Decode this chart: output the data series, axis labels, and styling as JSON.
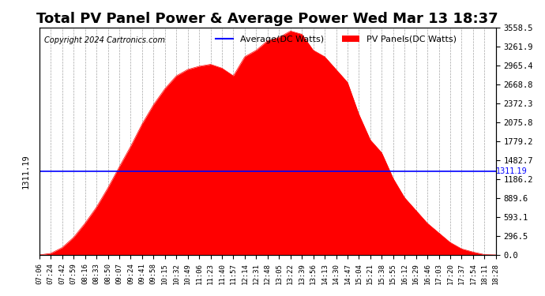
{
  "title": "Total PV Panel Power & Average Power Wed Mar 13 18:37",
  "copyright": "Copyright 2024 Cartronics.com",
  "legend_avg": "Average(DC Watts)",
  "legend_pv": "PV Panels(DC Watts)",
  "avg_value": 1311.19,
  "y_max": 3558.5,
  "y_min": 0.0,
  "yticks": [
    0.0,
    296.5,
    593.1,
    889.6,
    1186.2,
    1482.7,
    1779.2,
    2075.8,
    2372.3,
    2668.8,
    2965.4,
    3261.9,
    3558.5
  ],
  "bg_color": "#ffffff",
  "fill_color": "#ff0000",
  "line_color": "#ff0000",
  "avg_color": "#0000ff",
  "title_fontsize": 13,
  "copyright_fontsize": 7,
  "x_times": [
    "07:06",
    "07:24",
    "07:42",
    "07:59",
    "08:16",
    "08:33",
    "08:50",
    "09:07",
    "09:24",
    "09:41",
    "09:58",
    "10:15",
    "10:32",
    "10:49",
    "11:06",
    "11:23",
    "11:40",
    "11:57",
    "12:14",
    "12:31",
    "12:48",
    "13:05",
    "13:22",
    "13:39",
    "13:56",
    "14:13",
    "14:30",
    "14:47",
    "15:04",
    "15:21",
    "15:38",
    "15:55",
    "16:12",
    "16:29",
    "16:46",
    "17:03",
    "17:20",
    "17:37",
    "17:54",
    "18:11",
    "18:28"
  ],
  "pv_values": [
    5,
    30,
    120,
    280,
    500,
    750,
    1050,
    1380,
    1700,
    2050,
    2350,
    2600,
    2800,
    2900,
    2950,
    2980,
    2920,
    2800,
    3100,
    3200,
    3350,
    3400,
    3500,
    3450,
    3200,
    3100,
    2900,
    2700,
    2200,
    1800,
    1600,
    1200,
    900,
    700,
    500,
    350,
    200,
    100,
    50,
    10,
    5
  ]
}
